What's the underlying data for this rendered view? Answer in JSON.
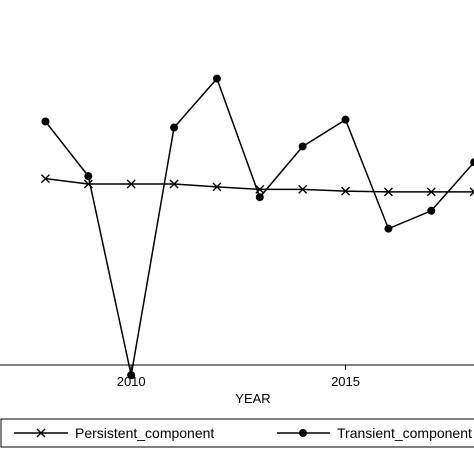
{
  "chart_data": {
    "type": "line",
    "title": "",
    "xlabel": "YEAR",
    "ylabel": "",
    "xlim": [
      2006.8,
      2018.3
    ],
    "ylim": [
      -0.55,
      0.55
    ],
    "x_ticks": [
      2010,
      2015
    ],
    "grid": false,
    "legend_position": "bottom",
    "x": [
      2008,
      2009,
      2010,
      2011,
      2012,
      2013,
      2014,
      2015,
      2016,
      2017,
      2018
    ],
    "series": [
      {
        "name": "Persistent_component",
        "marker": "x",
        "color": "#000000",
        "values": [
          0.05,
          0.035,
          0.035,
          0.035,
          0.027,
          0.02,
          0.02,
          0.015,
          0.013,
          0.013,
          0.013
        ]
      },
      {
        "name": "Transient_component",
        "marker": "filled-circle",
        "color": "#000000",
        "values": [
          0.21,
          0.057,
          -0.5,
          0.193,
          0.33,
          -0.002,
          0.14,
          0.215,
          -0.09,
          -0.04,
          0.096
        ]
      }
    ]
  }
}
